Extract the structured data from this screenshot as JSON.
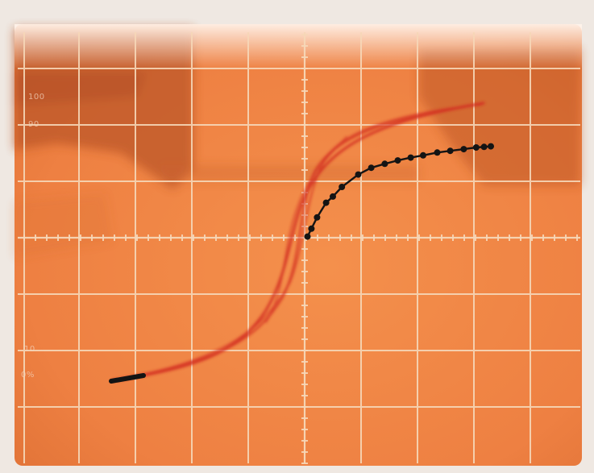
{
  "scope": {
    "labels": {
      "top_a": "100",
      "top_b": "90",
      "bottom_a": "10",
      "bottom_b": "0%"
    },
    "colors": {
      "screen": "#f28a45",
      "screen_dark": "#c0592a",
      "bezel": "#efe8e2",
      "grid": "#f6d7b8",
      "trace_red": "#d32e22",
      "trace_black": "#141414"
    }
  },
  "trace": {
    "black_points_u": [
      [
        0.05,
        0.02
      ],
      [
        0.12,
        0.16
      ],
      [
        0.22,
        0.36
      ],
      [
        0.38,
        0.62
      ],
      [
        0.5,
        0.73
      ],
      [
        0.66,
        0.9
      ],
      [
        0.95,
        1.12
      ],
      [
        1.18,
        1.24
      ],
      [
        1.42,
        1.31
      ],
      [
        1.65,
        1.37
      ],
      [
        1.88,
        1.42
      ],
      [
        2.1,
        1.46
      ],
      [
        2.35,
        1.51
      ],
      [
        2.58,
        1.54
      ],
      [
        2.82,
        1.57
      ],
      [
        3.04,
        1.6
      ],
      [
        3.18,
        1.61
      ],
      [
        3.3,
        1.62
      ]
    ]
  }
}
